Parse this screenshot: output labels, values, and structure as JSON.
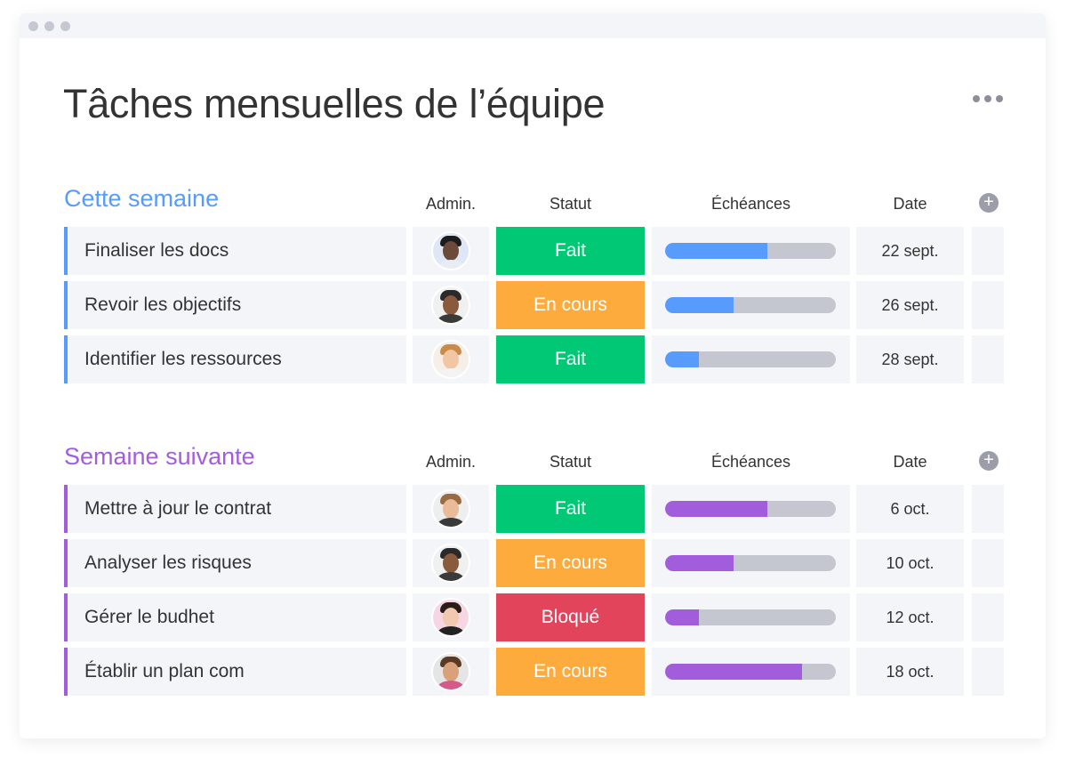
{
  "window": {
    "title": "Tâches mensuelles de l’équipe"
  },
  "columns": {
    "admin": "Admin.",
    "status": "Statut",
    "deadlines": "Échéances",
    "date": "Date"
  },
  "status_colors": {
    "Fait": "#00c875",
    "En cours": "#fdab3d",
    "Bloqué": "#e2445c"
  },
  "groups": [
    {
      "title": "Cette semaine",
      "color": "#579bfc",
      "rows": [
        {
          "name": "Finaliser les docs",
          "status": "Fait",
          "progress": 60,
          "date": "22 sept.",
          "avatar": "woman-curly-hair"
        },
        {
          "name": "Revoir les objectifs",
          "status": "En cours",
          "progress": 40,
          "date": "26  sept.",
          "avatar": "man-cap"
        },
        {
          "name": "Identifier les ressources",
          "status": "Fait",
          "progress": 20,
          "date": "28  sept.",
          "avatar": "woman-blonde"
        }
      ]
    },
    {
      "title": "Semaine suivante",
      "color": "#a25ddc",
      "rows": [
        {
          "name": "Mettre à jour le contrat",
          "status": "Fait",
          "progress": 60,
          "date": "6 oct.",
          "avatar": "man-beard"
        },
        {
          "name": "Analyser les risques",
          "status": "En cours",
          "progress": 40,
          "date": "10 oct.",
          "avatar": "man-cap"
        },
        {
          "name": "Gérer le budhet",
          "status": "Bloqué",
          "progress": 20,
          "date": "12 oct.",
          "avatar": "woman-dark-hair"
        },
        {
          "name": "Établir un plan com",
          "status": "En cours",
          "progress": 80,
          "date": "18 oct.",
          "avatar": "man-bearded-smile"
        }
      ]
    }
  ]
}
